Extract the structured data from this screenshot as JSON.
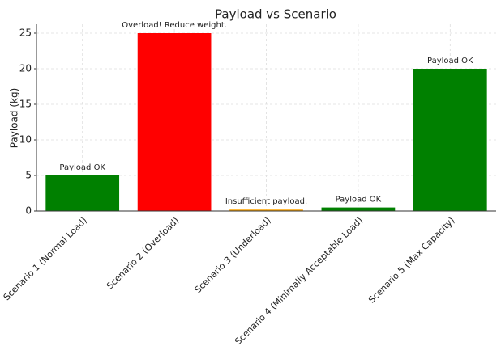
{
  "chart_data": {
    "type": "bar",
    "title": "Payload vs Scenario",
    "y_label": "Payload (kg)",
    "categories": [
      "Scenario 1 (Normal Load)",
      "Scenario 2 (Overload)",
      "Scenario 3 (Underload)",
      "Scenario 4 (Minimally Acceptable Load)",
      "Scenario 5 (Max Capacity)"
    ],
    "values": [
      5,
      25,
      0.2,
      0.5,
      20
    ],
    "colors": [
      "#008000",
      "#ff0000",
      "#ffa500",
      "#008000",
      "#008000"
    ],
    "annotations": [
      "Payload OK",
      "Overload! Reduce weight.",
      "Insufficient payload.",
      "Payload OK",
      "Payload OK"
    ],
    "ylim": [
      0,
      26.25
    ],
    "yticks": [
      0,
      5,
      10,
      15,
      20,
      25
    ],
    "grid": true
  }
}
